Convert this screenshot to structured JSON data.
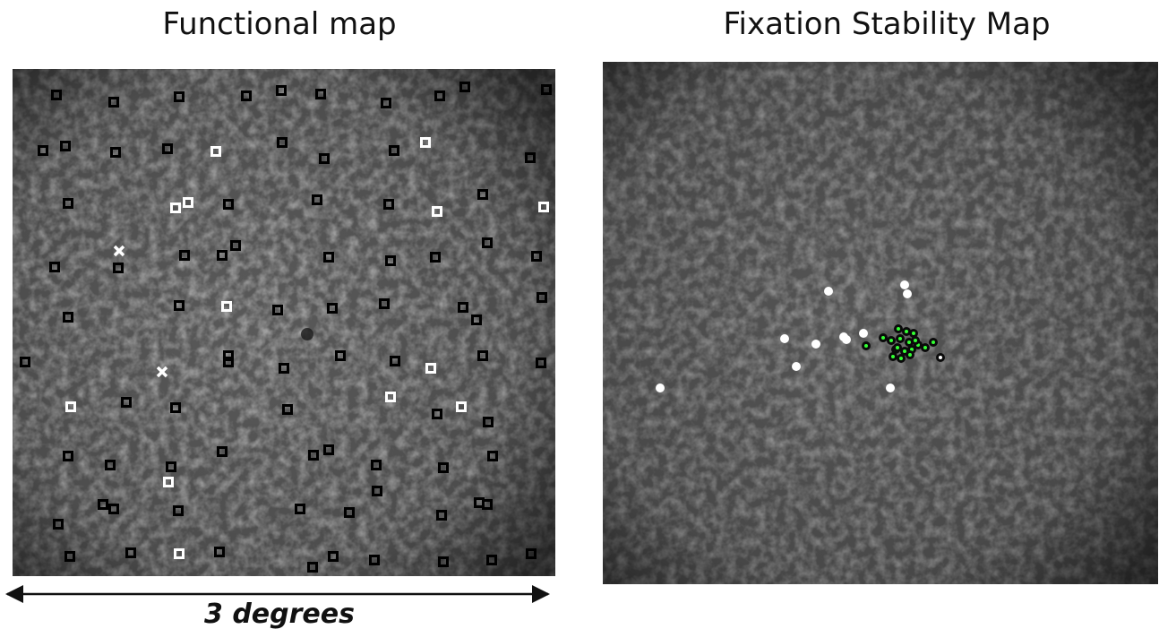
{
  "left_panel": {
    "title": "Functional map",
    "scale_label": "3 degrees"
  },
  "right_panel": {
    "title": "Fixation Stability Map"
  }
}
